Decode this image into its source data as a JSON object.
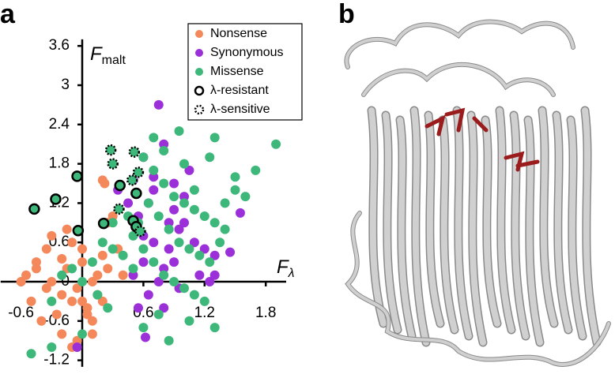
{
  "panels": [
    "a",
    "b"
  ],
  "chart_data": {
    "type": "scatter",
    "x_label": {
      "main": "F",
      "sub": "λ"
    },
    "y_label": {
      "main": "F",
      "sub": "malt"
    },
    "xlim": [
      -0.8,
      2.0
    ],
    "ylim": [
      -1.3,
      3.7
    ],
    "xticks": [
      -0.6,
      0,
      0.6,
      1.2,
      1.8
    ],
    "yticks": [
      3.6,
      3,
      2.4,
      1.8,
      1.2,
      0.6,
      0,
      -0.6,
      -1.2
    ],
    "legend": "top-right",
    "series": [
      {
        "name": "Nonsense",
        "color": "#f4885a",
        "marker": "filled",
        "x": [
          -0.55,
          -0.45,
          -0.35,
          -0.3,
          -0.2,
          -0.15,
          -0.1,
          -0.05,
          0.0,
          0.05,
          0.1,
          0.15,
          0.2,
          0.25,
          -0.5,
          -0.4,
          -0.25,
          -0.2,
          -0.1,
          -0.05,
          0.05,
          0.1,
          0.15,
          -0.3,
          -0.15,
          0.0,
          0.1,
          0.2,
          -0.35,
          -0.2,
          0.0,
          0.25,
          0.3,
          0.2,
          0.22,
          -0.6,
          -0.45,
          0.35,
          0.4,
          -0.1
        ],
        "values": [
          0.1,
          0.3,
          0.5,
          0.0,
          -0.2,
          0.2,
          0.6,
          -0.1,
          0.3,
          -0.4,
          -0.6,
          0.1,
          0.4,
          0.2,
          -0.3,
          -0.6,
          -0.5,
          -0.8,
          -0.3,
          -0.9,
          -0.5,
          0.0,
          -0.2,
          0.7,
          0.8,
          0.5,
          -0.8,
          -0.3,
          -0.1,
          0.35,
          -0.3,
          0.9,
          1.0,
          1.55,
          1.5,
          0.0,
          0.2,
          0.5,
          0.1,
          -1.0
        ]
      },
      {
        "name": "Synonymous",
        "color": "#9b30d9",
        "marker": "filled",
        "x": [
          0.75,
          0.8,
          0.6,
          0.7,
          0.9,
          1.0,
          0.65,
          0.55,
          0.85,
          0.95,
          1.1,
          1.2,
          1.3,
          0.6,
          0.7,
          0.8,
          0.5,
          0.45,
          0.9,
          1.0,
          1.05,
          0.75,
          0.65,
          0.55,
          1.15,
          1.3,
          1.45,
          0.6,
          0.85,
          0.35,
          0.5,
          0.7,
          0.9,
          1.25,
          0.95,
          0.8,
          0.62,
          1.55,
          0.55,
          -0.05
        ],
        "values": [
          2.7,
          2.1,
          1.9,
          1.6,
          1.5,
          1.3,
          1.2,
          1.0,
          0.9,
          0.8,
          0.6,
          0.5,
          0.4,
          0.3,
          0.6,
          0.2,
          0.1,
          1.2,
          1.1,
          0.9,
          1.7,
          0.0,
          -0.2,
          -0.4,
          0.1,
          0.1,
          0.45,
          0.7,
          0.5,
          1.4,
          1.55,
          1.4,
          0.3,
          0.0,
          -0.1,
          -0.4,
          -0.85,
          1.05,
          0.8,
          -1.0
        ]
      },
      {
        "name": "Missense",
        "color": "#3db87a",
        "marker": "filled",
        "x": [
          0.6,
          0.7,
          0.8,
          0.9,
          1.0,
          1.1,
          1.2,
          1.3,
          1.4,
          1.5,
          0.65,
          0.75,
          0.85,
          0.95,
          1.05,
          1.15,
          1.25,
          1.35,
          0.5,
          0.55,
          0.6,
          0.7,
          0.8,
          0.9,
          1.0,
          1.1,
          1.2,
          1.3,
          0.4,
          0.3,
          0.2,
          0.1,
          0.0,
          -0.1,
          -0.2,
          -0.3,
          1.9,
          1.7,
          1.6,
          1.0,
          0.95,
          0.8,
          0.7,
          1.25,
          1.3,
          1.5,
          0.85,
          0.3,
          0.5,
          0.75,
          0.6,
          1.05,
          0.25,
          0.15,
          -0.3,
          -0.5,
          0.0,
          1.1,
          1.4,
          0.45
        ],
        "values": [
          1.9,
          1.7,
          1.5,
          1.3,
          1.2,
          1.1,
          1.0,
          0.9,
          1.2,
          1.4,
          1.2,
          1.0,
          0.8,
          0.6,
          0.5,
          0.4,
          0.3,
          0.6,
          0.7,
          0.9,
          0.5,
          0.3,
          0.1,
          0.0,
          -0.1,
          -0.2,
          -0.3,
          -0.7,
          0.4,
          0.5,
          0.6,
          0.3,
          0.0,
          0.2,
          0.1,
          -0.3,
          2.1,
          1.7,
          1.3,
          1.8,
          2.3,
          2.0,
          2.2,
          1.9,
          2.2,
          1.6,
          -0.9,
          0.9,
          0.2,
          -0.5,
          -0.7,
          -0.6,
          -0.4,
          -0.2,
          -1.0,
          -1.1,
          -0.8,
          1.4,
          0.8,
          1.0
        ]
      },
      {
        "name": "λ-resistant",
        "color": "#3db87a",
        "marker": "outline-solid",
        "x": [
          -0.05,
          -0.26,
          -0.47,
          -0.04,
          0.21,
          0.37,
          0.53,
          0.5,
          0.53
        ],
        "values": [
          1.61,
          1.26,
          1.11,
          0.78,
          0.89,
          1.47,
          1.35,
          0.93,
          0.84
        ]
      },
      {
        "name": "λ-sensitive",
        "color": "#3db87a",
        "marker": "outline-dotted",
        "x": [
          0.28,
          0.3,
          0.51,
          0.55,
          0.36,
          0.49,
          0.57
        ],
        "values": [
          2.01,
          1.8,
          1.98,
          1.67,
          1.11,
          1.55,
          0.77
        ]
      }
    ]
  }
}
